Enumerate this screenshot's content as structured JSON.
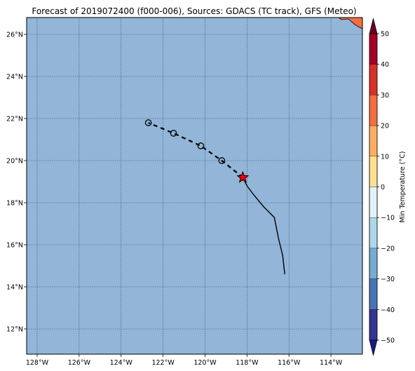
{
  "title": "Forecast of 2019072400 (f000-006), Sources: GDACS (TC track), GFS (Meteo)",
  "map": {
    "lon_range": [
      -128.5,
      -112.5
    ],
    "lat_range": [
      10.8,
      26.8
    ],
    "lon_ticks": [
      {
        "value": -128,
        "label": "128°W"
      },
      {
        "value": -126,
        "label": "126°W"
      },
      {
        "value": -124,
        "label": "124°W"
      },
      {
        "value": -122,
        "label": "122°W"
      },
      {
        "value": -120,
        "label": "120°W"
      },
      {
        "value": -118,
        "label": "118°W"
      },
      {
        "value": -116,
        "label": "116°W"
      },
      {
        "value": -114,
        "label": "114°W"
      }
    ],
    "lat_ticks": [
      {
        "value": 12,
        "label": "12°N"
      },
      {
        "value": 14,
        "label": "14°N"
      },
      {
        "value": 16,
        "label": "16°N"
      },
      {
        "value": 18,
        "label": "18°N"
      },
      {
        "value": 20,
        "label": "20°N"
      },
      {
        "value": 22,
        "label": "22°N"
      },
      {
        "value": 24,
        "label": "24°N"
      },
      {
        "value": 26,
        "label": "26°N"
      }
    ],
    "ocean_color": "#92b5d8",
    "grid": true
  },
  "track": {
    "past": [
      {
        "lon": -116.2,
        "lat": 14.6
      },
      {
        "lon": -116.3,
        "lat": 15.5
      },
      {
        "lon": -116.5,
        "lat": 16.3
      },
      {
        "lon": -116.7,
        "lat": 17.3
      },
      {
        "lon": -117.2,
        "lat": 17.8
      },
      {
        "lon": -117.7,
        "lat": 18.4
      },
      {
        "lon": -118.0,
        "lat": 18.8
      },
      {
        "lon": -118.2,
        "lat": 19.2
      }
    ],
    "current": {
      "lon": -118.2,
      "lat": 19.2
    },
    "forecast": [
      {
        "lon": -118.2,
        "lat": 19.2
      },
      {
        "lon": -119.2,
        "lat": 20.0
      },
      {
        "lon": -120.2,
        "lat": 20.7
      },
      {
        "lon": -121.5,
        "lat": 21.3
      },
      {
        "lon": -122.7,
        "lat": 21.8
      }
    ],
    "forecast_points": [
      {
        "lon": -119.2,
        "lat": 20.0
      },
      {
        "lon": -120.2,
        "lat": 20.7
      },
      {
        "lon": -121.5,
        "lat": 21.3
      },
      {
        "lon": -122.7,
        "lat": 21.8
      }
    ],
    "current_marker_color": "#ff0000"
  },
  "colorbar": {
    "label": "Min Temperature (°C)",
    "levels": [
      -50,
      -40,
      -30,
      -20,
      -10,
      0,
      10,
      20,
      30,
      40,
      50
    ],
    "tick_labels": [
      "−50",
      "−40",
      "−30",
      "−20",
      "−10",
      "0",
      "10",
      "20",
      "30",
      "40",
      "50"
    ],
    "colors": [
      "#313695",
      "#4575b4",
      "#74add1",
      "#abd9e9",
      "#e0f3f8",
      "#fee090",
      "#fdae61",
      "#f46d43",
      "#d73027",
      "#a50026"
    ],
    "under_color": "#1a1a80",
    "over_color": "#67001f"
  },
  "land_patch_color": "#f46d43"
}
